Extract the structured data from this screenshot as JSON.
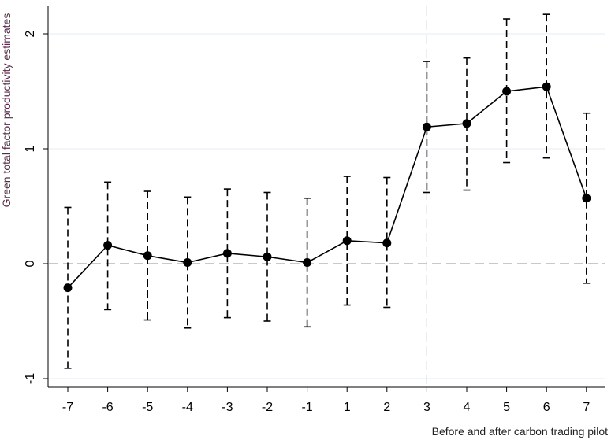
{
  "chart_data": {
    "type": "line",
    "title": "",
    "xlabel": "Before and after carbon trading pilot",
    "ylabel": "Green total factor productivity estimates",
    "x": [
      "-7",
      "-6",
      "-5",
      "-4",
      "-3",
      "-2",
      "-1",
      "1",
      "2",
      "3",
      "4",
      "5",
      "6",
      "7"
    ],
    "series": [
      {
        "values": [
          -0.21,
          0.16,
          0.07,
          0.01,
          0.09,
          0.06,
          0.01,
          0.2,
          0.18,
          1.19,
          1.22,
          1.5,
          1.54,
          0.57
        ],
        "ci_lower": [
          -0.91,
          -0.4,
          -0.49,
          -0.56,
          -0.47,
          -0.5,
          -0.55,
          -0.36,
          -0.38,
          0.62,
          0.64,
          0.88,
          0.92,
          -0.17
        ],
        "ci_upper": [
          0.49,
          0.71,
          0.63,
          0.58,
          0.65,
          0.62,
          0.57,
          0.76,
          0.75,
          1.76,
          1.79,
          2.13,
          2.17,
          1.31
        ]
      }
    ],
    "ylim": [
      -1.05,
      2.27
    ],
    "yticks": [
      "-1",
      "0",
      "1",
      "2"
    ],
    "grid": true,
    "reference_lines": {
      "y": 0,
      "x": "3"
    },
    "colors": {
      "line": "#000000",
      "grid": "#e6eef3",
      "reference": "#9aaeb9",
      "ylabel": "#5a2a4a"
    }
  }
}
